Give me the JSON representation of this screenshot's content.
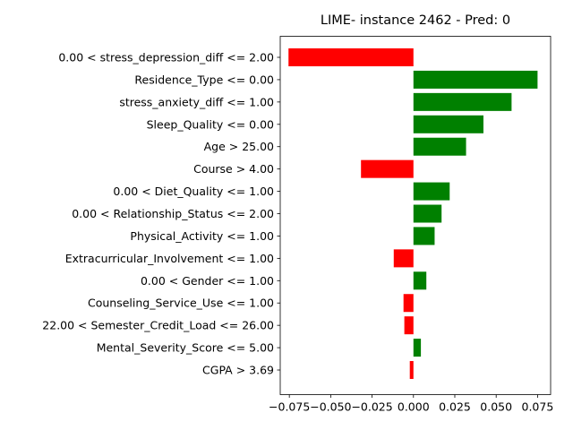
{
  "chart_data": {
    "type": "bar",
    "orientation": "horizontal",
    "title": "LIME- instance 2462 - Pred: 0",
    "xlabel": "",
    "ylabel": "",
    "xlim": [
      -0.0805,
      0.0829
    ],
    "xticks": [
      -0.075,
      -0.05,
      -0.025,
      0.0,
      0.025,
      0.05,
      0.075
    ],
    "xtick_labels": [
      "−0.075",
      "−0.050",
      "−0.025",
      "0.000",
      "0.025",
      "0.050",
      "0.075"
    ],
    "grid": false,
    "legend": "none",
    "colors": {
      "positive": "#008000",
      "negative": "#ff0000"
    },
    "categories": [
      "0.00 < stress_depression_diff <= 2.00",
      "Residence_Type <= 0.00",
      "stress_anxiety_diff <= 1.00",
      "Sleep_Quality <= 0.00",
      "Age > 25.00",
      "Course > 4.00",
      "0.00 < Diet_Quality <= 1.00",
      "0.00 < Relationship_Status <= 2.00",
      "Physical_Activity <= 1.00",
      "Extracurricular_Involvement <= 1.00",
      "0.00 < Gender <= 1.00",
      "Counseling_Service_Use <= 1.00",
      "22.00 < Semester_Credit_Load <= 26.00",
      "Mental_Severity_Score <= 5.00",
      "CGPA > 3.69"
    ],
    "values": [
      -0.0755,
      0.075,
      0.0593,
      0.0423,
      0.0318,
      -0.0317,
      0.0219,
      0.017,
      0.0128,
      -0.0119,
      0.0078,
      -0.006,
      -0.0055,
      0.0045,
      -0.0022
    ]
  }
}
